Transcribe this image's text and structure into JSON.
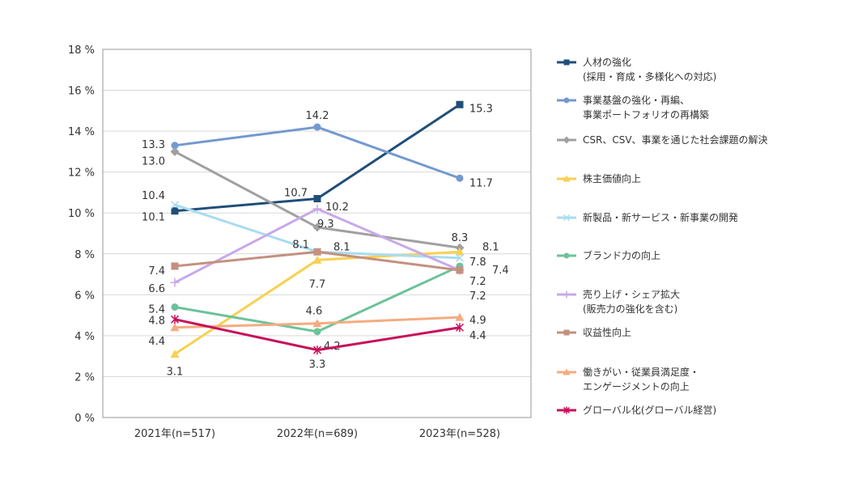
{
  "chart_data": {
    "type": "line",
    "title": "",
    "xlabel": "",
    "ylabel": "",
    "categories": [
      "2021年(n=517)",
      "2022年(n=689)",
      "2023年(n=528)"
    ],
    "ylim": [
      0,
      18
    ],
    "yticks": [
      "0 %",
      "2 %",
      "4 %",
      "6 %",
      "8 %",
      "10 %",
      "12 %",
      "14 %",
      "16 %",
      "18 %"
    ],
    "grid": true,
    "legend_position": "right",
    "series": [
      {
        "name": "人材の強化\n(採用・育成・多様化への対応)",
        "values": [
          10.1,
          10.7,
          15.3
        ],
        "color": "#1f4e79",
        "marker": "square"
      },
      {
        "name": "事業基盤の強化・再編、\n事業ポートフォリオの再構築",
        "values": [
          13.3,
          14.2,
          11.7
        ],
        "color": "#7399cf",
        "marker": "circle"
      },
      {
        "name": "CSR、CSV、事業を通じた社会課題の解決",
        "values": [
          13.0,
          9.3,
          8.3
        ],
        "color": "#a0a0a0",
        "marker": "diamond"
      },
      {
        "name": "株主価値向上",
        "values": [
          3.1,
          7.7,
          8.1
        ],
        "color": "#f8d050",
        "marker": "triangle"
      },
      {
        "name": "新製品・新サービス・新事業の開発",
        "values": [
          10.4,
          8.1,
          7.8
        ],
        "color": "#a8dcf0",
        "marker": "x"
      },
      {
        "name": "ブランド力の向上",
        "values": [
          5.4,
          4.2,
          7.4
        ],
        "color": "#6cc29a",
        "marker": "circle"
      },
      {
        "name": "売り上げ・シェア拡大\n(販売力の強化を含む)",
        "values": [
          6.6,
          10.2,
          7.2
        ],
        "color": "#c9a8e8",
        "marker": "plus"
      },
      {
        "name": "収益性向上",
        "values": [
          7.4,
          8.1,
          7.2
        ],
        "color": "#c49080",
        "marker": "square"
      },
      {
        "name": "働きがい・従業員満足度・\nエンゲージメントの向上",
        "values": [
          4.4,
          4.6,
          4.9
        ],
        "color": "#f4ac80",
        "marker": "triangle"
      },
      {
        "name": "グローバル化(グローバル経営)",
        "values": [
          4.8,
          3.3,
          4.4
        ],
        "color": "#c8105a",
        "marker": "asterisk"
      }
    ]
  }
}
